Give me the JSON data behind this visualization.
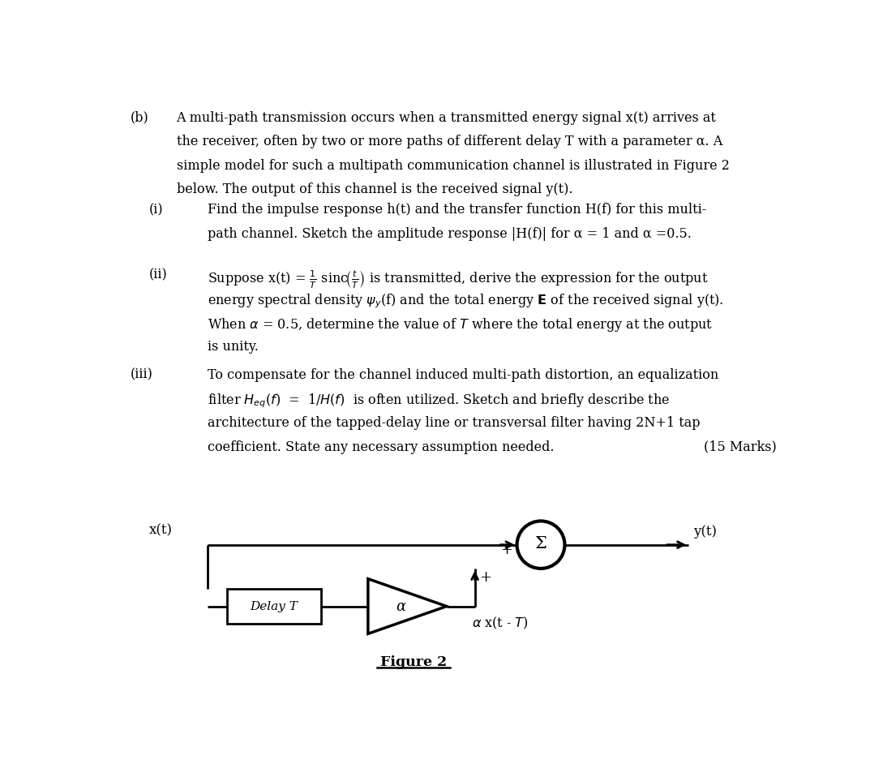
{
  "bg_color": "#ffffff",
  "text_color": "#000000",
  "fig_width": 10.89,
  "fig_height": 9.58,
  "main_label": "(b)",
  "item_i_label": "(i)",
  "item_ii_label": "(ii)",
  "item_iii_label": "(iii)",
  "marks_text": "(15 Marks)",
  "figure_label": "Figure 2",
  "diagram": {
    "xt_label": "x(t)",
    "yt_label": "y(t)",
    "delay_label": "Delay T",
    "alpha_label": "α",
    "alpha_xt_label": "α x(t - T)",
    "plus1": "+",
    "plus2": "+",
    "sigma": "Σ"
  },
  "paragraph_b_lines": [
    "A multi-path transmission occurs when a transmitted energy signal x(t) arrives at",
    "the receiver, often by two or more paths of different delay T with a parameter α. A",
    "simple model for such a multipath communication channel is illustrated in Figure 2",
    "below. The output of this channel is the received signal y(t)."
  ],
  "item_i_lines": [
    "Find the impulse response h(t) and the transfer function H(f) for this multi-",
    "path channel. Sketch the amplitude response |H(f)| for α = 1 and α =0.5."
  ],
  "item_ii_lines": [
    "Suppose x(t) = ¹⁄T sinc(t⁄T) is transmitted, derive the expression for the output",
    "energy spectral density ψy(f) and the total energy E of the received signal y(t).",
    "When α = 0.5, determine the value of T where the total energy at the output",
    "is unity."
  ],
  "item_iii_lines": [
    "To compensate for the channel induced multi-path distortion, an equalization",
    "filter Heq(f)  =  1/H(f)  is often utilized. Sketch and briefly describe the",
    "architecture of the tapped-delay line or transversal filter having 2N+1 tap",
    "coefficient. State any necessary assumption needed."
  ]
}
